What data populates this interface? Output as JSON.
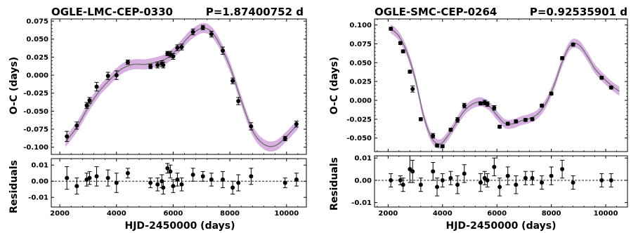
{
  "colors": {
    "band": "#d3a8dc",
    "line": "#707070",
    "point": "#000000"
  },
  "chart_data": [
    {
      "type": "scatter",
      "title": "OGLE-LMC-CEP-0330",
      "subtitle": "P=1.87400752 d",
      "xlabel": "HJD-2450000 (days)",
      "ylabel": "O-C (days)",
      "resid_ylabel": "Residuals",
      "xlim": [
        1700,
        10700
      ],
      "ylim": [
        -0.11,
        0.078
      ],
      "resid_ylim": [
        -0.016,
        0.014
      ],
      "xticks": [
        2000,
        4000,
        6000,
        8000,
        10000
      ],
      "xtick_labels": [
        "2000",
        "4000",
        "6000",
        "8000",
        "10000"
      ],
      "yticks": [
        -0.1,
        -0.075,
        -0.05,
        -0.025,
        0.0,
        0.025,
        0.05,
        0.075
      ],
      "ytick_labels": [
        "-0.100",
        "-0.075",
        "-0.050",
        "-0.025",
        "0.000",
        "0.025",
        "0.050",
        "0.075"
      ],
      "resid_yticks": [
        -0.01,
        0.0,
        0.01
      ],
      "resid_ytick_labels": [
        "-0.01",
        "0.00",
        "0.01"
      ],
      "fit": {
        "x": [
          2200,
          2600,
          3000,
          3400,
          3800,
          4200,
          4600,
          5000,
          5400,
          5800,
          6200,
          6600,
          7000,
          7300,
          7600,
          8000,
          8400,
          8800,
          9200,
          9600,
          10000,
          10400
        ],
        "y": [
          -0.093,
          -0.072,
          -0.045,
          -0.022,
          -0.005,
          0.009,
          0.015,
          0.015,
          0.018,
          0.024,
          0.038,
          0.055,
          0.065,
          0.062,
          0.046,
          0.012,
          -0.035,
          -0.077,
          -0.096,
          -0.098,
          -0.085,
          -0.068
        ],
        "band_halfwidth": 0.007
      },
      "points": {
        "x": [
          2250,
          2600,
          2950,
          3050,
          3300,
          3700,
          4000,
          4400,
          5200,
          5450,
          5600,
          5650,
          5800,
          5900,
          6000,
          6150,
          6300,
          6700,
          7050,
          7350,
          7750,
          8100,
          8300,
          8750,
          9950,
          10350
        ],
        "y": [
          -0.085,
          -0.07,
          -0.042,
          -0.035,
          -0.016,
          -0.001,
          0.0,
          0.018,
          0.012,
          0.014,
          0.016,
          0.014,
          0.03,
          0.029,
          0.026,
          0.038,
          0.039,
          0.06,
          0.066,
          0.057,
          0.034,
          -0.008,
          -0.036,
          -0.071,
          -0.088,
          -0.068
        ],
        "err": [
          0.007,
          0.005,
          0.004,
          0.004,
          0.006,
          0.005,
          0.006,
          0.003,
          0.003,
          0.004,
          0.004,
          0.004,
          0.003,
          0.004,
          0.004,
          0.004,
          0.004,
          0.004,
          0.003,
          0.004,
          0.005,
          0.004,
          0.005,
          0.005,
          0.003,
          0.004
        ],
        "resid": [
          0.002,
          -0.003,
          0.001,
          0.002,
          0.003,
          0.002,
          -0.001,
          0.005,
          -0.001,
          -0.002,
          0.0,
          -0.004,
          0.008,
          0.006,
          -0.003,
          0.001,
          -0.002,
          0.004,
          0.003,
          0.001,
          0.001,
          -0.004,
          -0.001,
          0.003,
          -0.001,
          0.001
        ],
        "resid_err": [
          0.007,
          0.005,
          0.004,
          0.004,
          0.006,
          0.005,
          0.006,
          0.003,
          0.003,
          0.004,
          0.004,
          0.004,
          0.003,
          0.004,
          0.004,
          0.004,
          0.004,
          0.004,
          0.003,
          0.004,
          0.005,
          0.004,
          0.005,
          0.005,
          0.003,
          0.004
        ]
      }
    },
    {
      "type": "scatter",
      "title": "OGLE-SMC-CEP-0264",
      "subtitle": "P=0.92535901 d",
      "xlabel": "HJD-2450000 (days)",
      "ylabel": "O-C (days)",
      "resid_ylabel": "Residuals",
      "xlim": [
        1500,
        10800
      ],
      "ylim": [
        -0.068,
        0.108
      ],
      "resid_ylim": [
        -0.012,
        0.011
      ],
      "xticks": [
        2000,
        4000,
        6000,
        8000,
        10000
      ],
      "xtick_labels": [
        "2000",
        "4000",
        "6000",
        "8000",
        "10000"
      ],
      "yticks": [
        -0.05,
        -0.025,
        0.0,
        0.025,
        0.05,
        0.075,
        0.1
      ],
      "ytick_labels": [
        "-0.050",
        "-0.025",
        "0.000",
        "0.025",
        "0.050",
        "0.075",
        "0.100"
      ],
      "resid_yticks": [
        -0.01,
        0.0,
        0.01
      ],
      "resid_ytick_labels": [
        "-0.01",
        "0.00",
        "0.01"
      ],
      "fit": {
        "x": [
          2100,
          2400,
          2700,
          3000,
          3300,
          3600,
          3900,
          4200,
          4500,
          4800,
          5100,
          5400,
          5700,
          6000,
          6300,
          6600,
          6900,
          7200,
          7500,
          7800,
          8100,
          8400,
          8700,
          9000,
          9300,
          9600,
          9900,
          10200,
          10500
        ],
        "y": [
          0.095,
          0.085,
          0.063,
          0.028,
          -0.02,
          -0.05,
          -0.058,
          -0.047,
          -0.03,
          -0.014,
          -0.005,
          -0.002,
          -0.007,
          -0.02,
          -0.031,
          -0.031,
          -0.027,
          -0.024,
          -0.018,
          -0.004,
          0.02,
          0.051,
          0.073,
          0.074,
          0.06,
          0.042,
          0.03,
          0.02,
          0.012
        ],
        "band_halfwidth": 0.006
      },
      "points": {
        "x": [
          2100,
          2450,
          2550,
          2800,
          2900,
          3200,
          3650,
          3800,
          4000,
          4300,
          4550,
          4800,
          5400,
          5550,
          5650,
          5900,
          6100,
          6400,
          6700,
          7050,
          7300,
          7650,
          8000,
          8400,
          8800,
          9850,
          10200
        ],
        "y": [
          0.095,
          0.076,
          0.065,
          0.038,
          0.015,
          -0.025,
          -0.047,
          -0.06,
          -0.061,
          -0.039,
          -0.026,
          -0.007,
          -0.004,
          -0.003,
          -0.005,
          -0.01,
          -0.035,
          -0.031,
          -0.028,
          -0.026,
          -0.025,
          -0.007,
          0.009,
          0.056,
          0.074,
          0.03,
          0.017
        ],
        "err": [
          0.002,
          0.002,
          0.002,
          0.002,
          0.004,
          0.002,
          0.003,
          0.002,
          0.002,
          0.002,
          0.003,
          0.003,
          0.002,
          0.003,
          0.003,
          0.003,
          0.002,
          0.002,
          0.002,
          0.002,
          0.002,
          0.002,
          0.002,
          0.002,
          0.002,
          0.002,
          0.002
        ],
        "resid": [
          0.0,
          0.0,
          -0.002,
          0.005,
          0.004,
          -0.002,
          0.004,
          -0.003,
          0.0,
          0.001,
          -0.002,
          0.003,
          -0.001,
          0.001,
          0.0,
          0.006,
          -0.003,
          0.002,
          -0.002,
          0.001,
          0.001,
          -0.001,
          0.002,
          0.005,
          -0.001,
          0.0,
          0.0
        ],
        "resid_err": [
          0.003,
          0.002,
          0.003,
          0.006,
          0.005,
          0.003,
          0.004,
          0.004,
          0.003,
          0.003,
          0.004,
          0.004,
          0.004,
          0.003,
          0.003,
          0.004,
          0.004,
          0.004,
          0.004,
          0.003,
          0.003,
          0.003,
          0.004,
          0.004,
          0.003,
          0.003,
          0.003
        ]
      }
    }
  ]
}
